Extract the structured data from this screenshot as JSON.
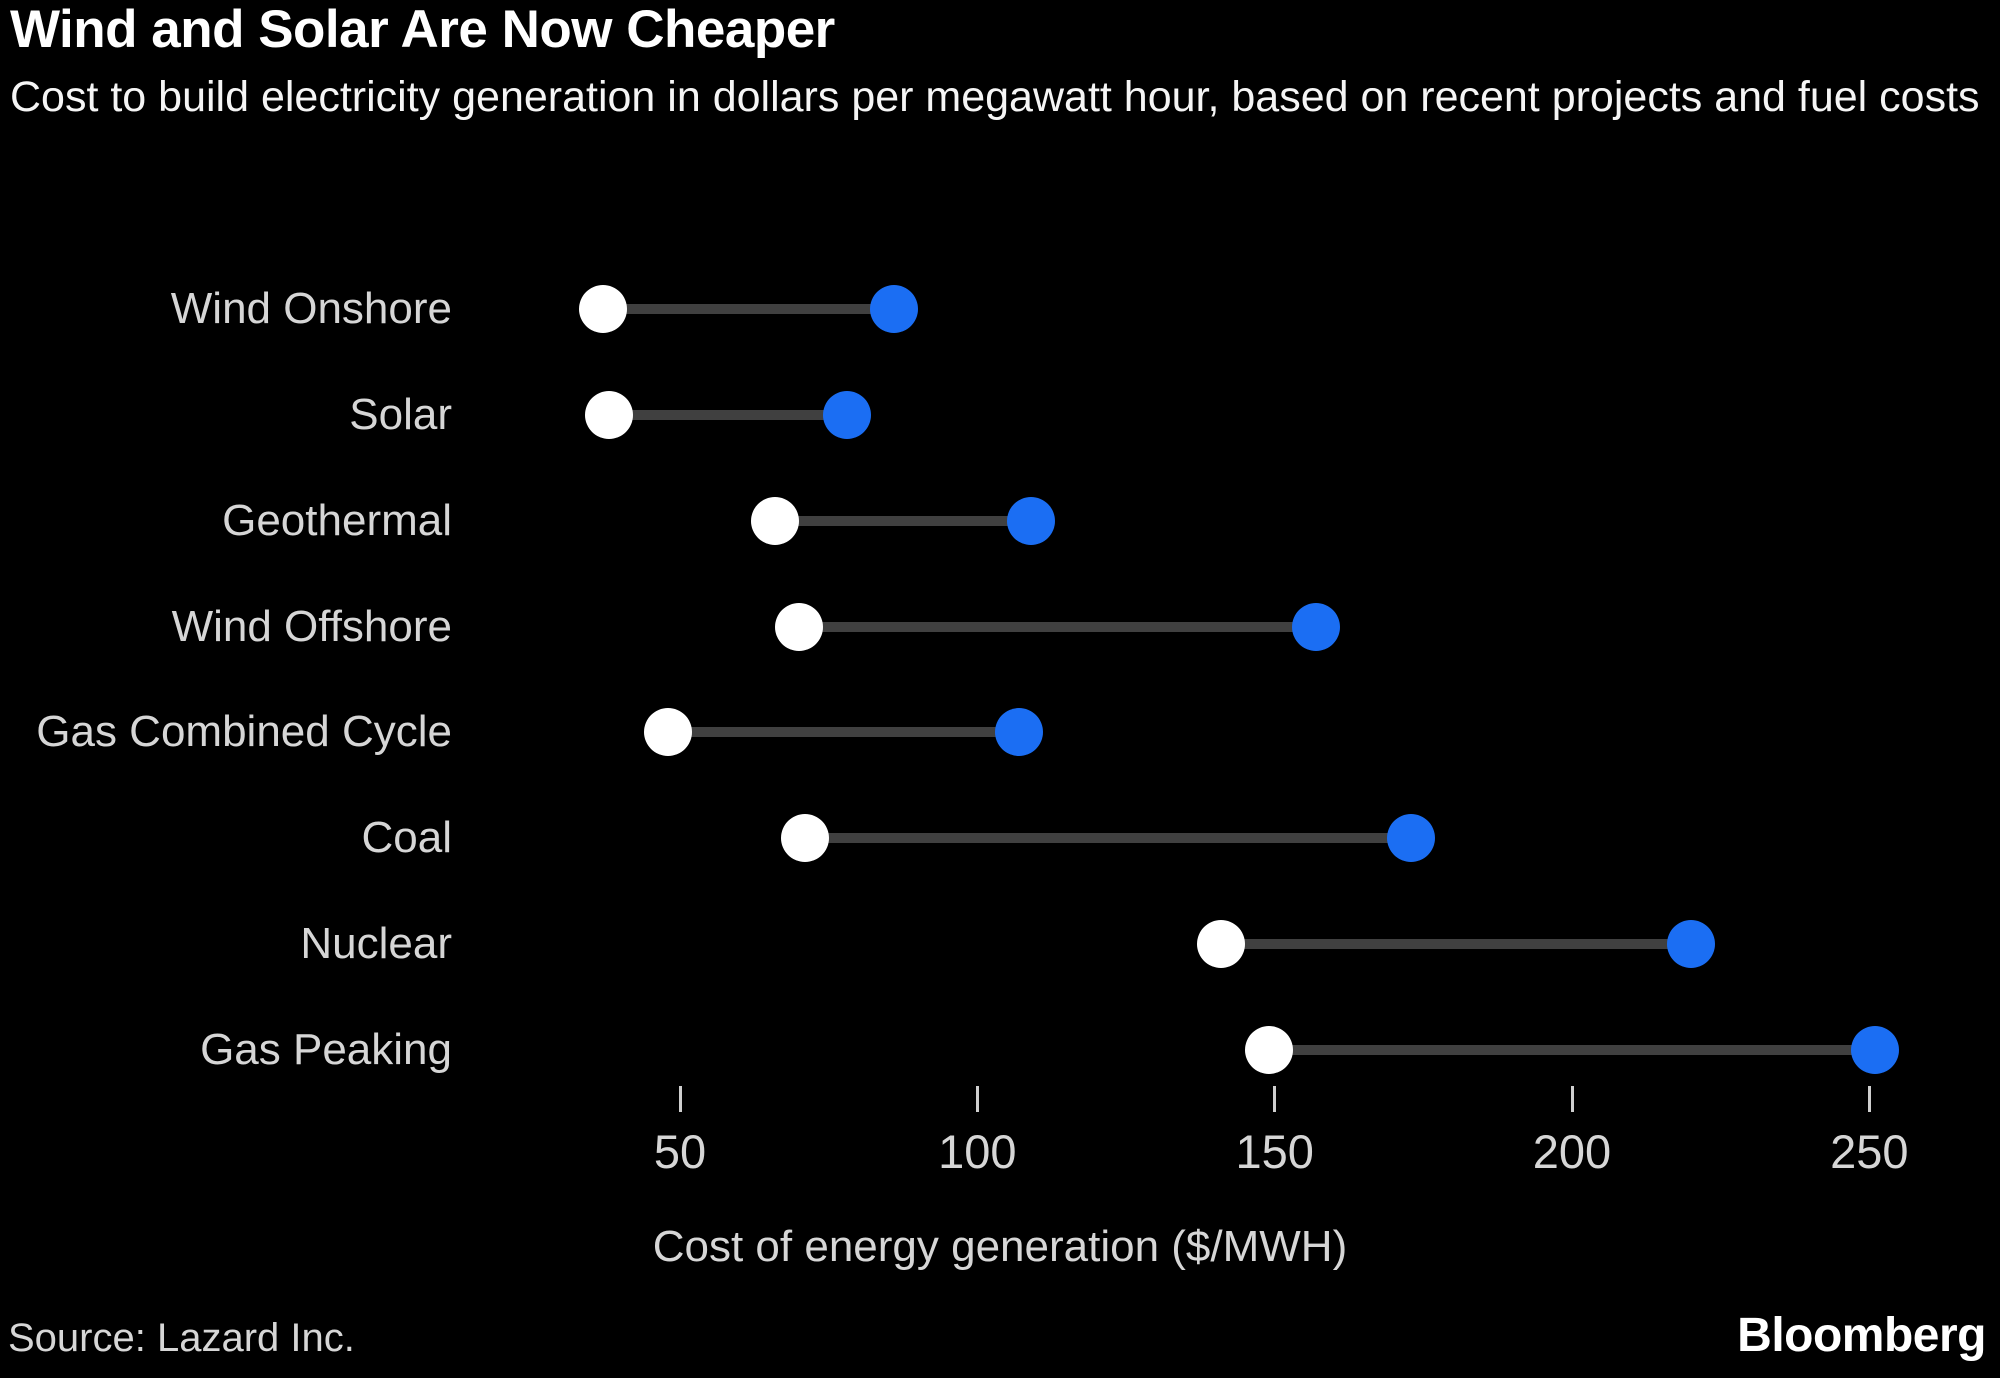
{
  "header": {
    "title": "Wind and Solar Are Now Cheaper",
    "subtitle": "Cost to build electricity generation in dollars per megawatt hour, based on recent projects and fuel costs"
  },
  "chart_data": {
    "type": "dumbbell",
    "categories": [
      "Wind Onshore",
      "Solar",
      "Geothermal",
      "Wind Offshore",
      "Gas Combined Cycle",
      "Coal",
      "Nuclear",
      "Gas Peaking"
    ],
    "series": [
      {
        "name": "low",
        "color": "#ffffff",
        "values": [
          37,
          38,
          66,
          70,
          48,
          71,
          141,
          149
        ]
      },
      {
        "name": "high",
        "color": "#1b6ef3",
        "values": [
          86,
          78,
          109,
          157,
          107,
          173,
          220,
          251
        ]
      }
    ],
    "connector_color": "#404040",
    "xlabel": "Cost of energy generation ($/MWH)",
    "x_ticks": [
      50,
      100,
      150,
      200,
      250
    ],
    "xlim": [
      30,
      262
    ],
    "grid": false,
    "legend": "none",
    "background": "#000000"
  },
  "footer": {
    "source": "Source: Lazard Inc.",
    "brand": "Bloomberg"
  }
}
